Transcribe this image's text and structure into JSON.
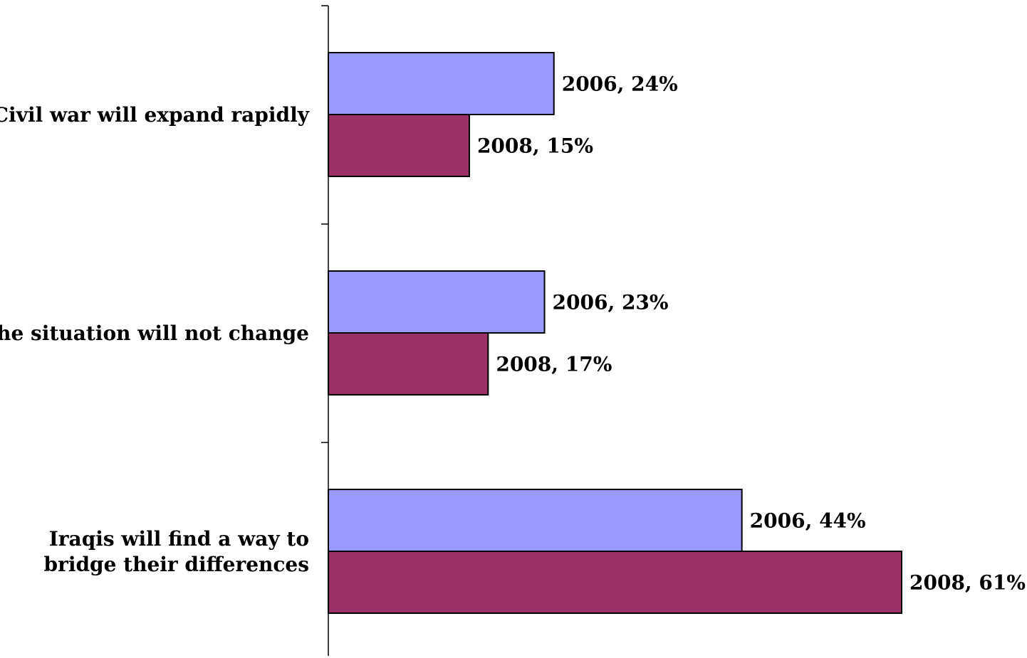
{
  "chart_data": {
    "type": "bar",
    "orientation": "horizontal",
    "categories": [
      "Civil war will expand rapidly",
      "The situation will not change",
      "Iraqis will find a way to bridge their differences"
    ],
    "category_lines": [
      [
        "Civil war will expand rapidly"
      ],
      [
        "The situation will not change"
      ],
      [
        "Iraqis will find a way to",
        "bridge their differences"
      ]
    ],
    "series": [
      {
        "name": "2006",
        "values": [
          24,
          23,
          44
        ],
        "color": "#9999ff"
      },
      {
        "name": "2008",
        "values": [
          15,
          17,
          61
        ],
        "color": "#993366"
      }
    ],
    "data_labels": [
      [
        "2006, 24%",
        "2006, 23%",
        "2006, 44%"
      ],
      [
        "2008, 15%",
        "2008, 17%",
        "2008, 61%"
      ]
    ],
    "xlim": [
      0,
      61
    ],
    "grid": false,
    "legend": "none",
    "title": "",
    "xlabel": "",
    "ylabel": ""
  }
}
